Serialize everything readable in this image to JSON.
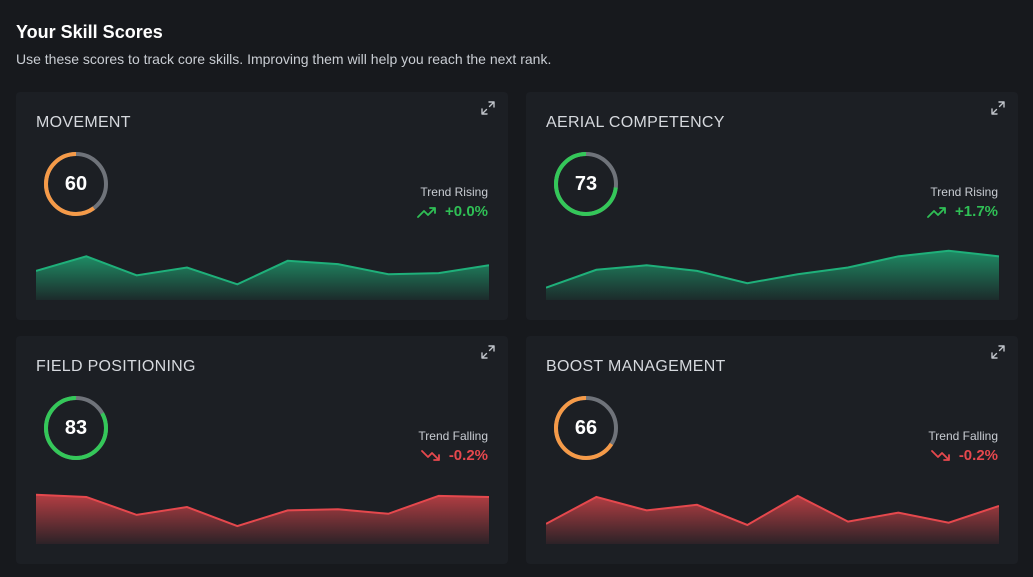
{
  "header": {
    "title": "Your Skill Scores",
    "subtitle": "Use these scores to track core skills. Improving them will help you reach the next rank."
  },
  "colors": {
    "ring_track": "#6f737a",
    "orange": "#f59a48",
    "green": "#34c759",
    "up": "#2fbf55",
    "down": "#e5484d",
    "spark_up_stroke": "#1fb07a",
    "spark_down_stroke": "#e5484d"
  },
  "cards": [
    {
      "title": "MOVEMENT",
      "score": "60",
      "score_pct": 60,
      "ring_color": "orange",
      "trend_label": "Trend Rising",
      "trend_value": "+0.0%",
      "trend_dir": "up",
      "expand_icon": "expand-icon",
      "sparkline": [
        52,
        78,
        44,
        58,
        28,
        70,
        64,
        46,
        48,
        62
      ]
    },
    {
      "title": "AERIAL COMPETENCY",
      "score": "73",
      "score_pct": 73,
      "ring_color": "green",
      "trend_label": "Trend Rising",
      "trend_value": "+1.7%",
      "trend_dir": "up",
      "expand_icon": "expand-icon",
      "sparkline": [
        22,
        54,
        62,
        52,
        30,
        46,
        58,
        78,
        88,
        78
      ]
    },
    {
      "title": "FIELD POSITIONING",
      "score": "83",
      "score_pct": 83,
      "ring_color": "green",
      "trend_label": "Trend Falling",
      "trend_value": "-0.2%",
      "trend_dir": "down",
      "expand_icon": "expand-icon",
      "sparkline": [
        88,
        84,
        52,
        66,
        32,
        60,
        62,
        54,
        86,
        84
      ]
    },
    {
      "title": "BOOST MANAGEMENT",
      "score": "66",
      "score_pct": 66,
      "ring_color": "orange",
      "trend_label": "Trend Falling",
      "trend_value": "-0.2%",
      "trend_dir": "down",
      "expand_icon": "expand-icon",
      "sparkline": [
        36,
        84,
        60,
        70,
        34,
        86,
        40,
        56,
        38,
        68
      ]
    }
  ]
}
